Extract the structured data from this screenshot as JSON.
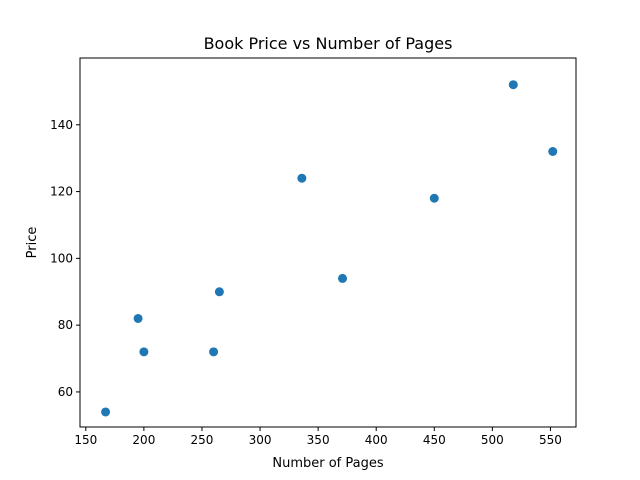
{
  "chart_data": {
    "type": "scatter",
    "title": "Book Price vs Number of Pages",
    "xlabel": "Number of Pages",
    "ylabel": "Price",
    "xlim": [
      145,
      572
    ],
    "ylim": [
      49.5,
      160
    ],
    "xticks": [
      150,
      200,
      250,
      300,
      350,
      400,
      450,
      500,
      550
    ],
    "yticks": [
      60,
      80,
      100,
      120,
      140
    ],
    "grid": false,
    "marker_color": "#1f77b4",
    "series": [
      {
        "points": [
          {
            "x": 167,
            "y": 54
          },
          {
            "x": 195,
            "y": 82
          },
          {
            "x": 200,
            "y": 72
          },
          {
            "x": 260,
            "y": 72
          },
          {
            "x": 265,
            "y": 90
          },
          {
            "x": 336,
            "y": 124
          },
          {
            "x": 371,
            "y": 94
          },
          {
            "x": 450,
            "y": 118
          },
          {
            "x": 518,
            "y": 152
          },
          {
            "x": 552,
            "y": 132
          }
        ]
      }
    ]
  }
}
